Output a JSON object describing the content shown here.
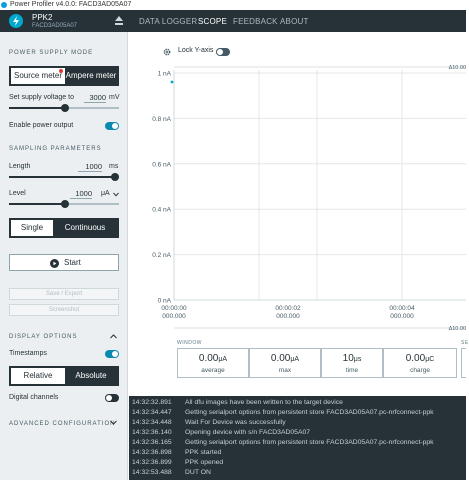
{
  "window": {
    "title": "Power Profiler v4.0.0: FACD3AD05A07"
  },
  "device": {
    "name": "PPK2",
    "serial": "FACD3AD05A07"
  },
  "nav": {
    "tabs": [
      "DATA LOGGER",
      "SCOPE",
      "FEEDBACK",
      "ABOUT"
    ],
    "active": "SCOPE"
  },
  "sidebar": {
    "power_supply_title": "POWER SUPPLY MODE",
    "mode_options": [
      "Source meter",
      "Ampere meter"
    ],
    "mode_selected": "Source meter",
    "voltage_label": "Set supply voltage to",
    "voltage_value": "3000",
    "voltage_unit": "mV",
    "enable_output_label": "Enable power output",
    "enable_output_on": true,
    "sampling_title": "SAMPLING PARAMETERS",
    "length_label": "Length",
    "length_value": "1000",
    "length_unit": "ms",
    "level_label": "Level",
    "level_value": "1000",
    "level_unit": "μA",
    "trigger_options": [
      "Single",
      "Continuous"
    ],
    "trigger_selected": "Single",
    "start_label": "Start",
    "save_export_label": "Save / Export",
    "screenshot_label": "Screenshot",
    "display_title": "DISPLAY OPTIONS",
    "timestamps_label": "Timestamps",
    "timestamps_on": true,
    "view_options": [
      "Relative",
      "Absolute"
    ],
    "view_selected": "Relative",
    "digital_channels_label": "Digital channels",
    "digital_channels_on": false,
    "advanced_title": "ADVANCED CONFIGURATION"
  },
  "chart_toolbar": {
    "lock_y_label": "Lock Y-axis",
    "lock_y_on": false
  },
  "chart_data": {
    "type": "line",
    "y_ticks": [
      "0 nA",
      "0.2 nA",
      "0.4 nA",
      "0.6 nA",
      "0.8 nA",
      "1 nA"
    ],
    "ylim": [
      0,
      1
    ],
    "x_ticks": [
      {
        "time": "00:00:00",
        "sub": "000.000"
      },
      {
        "time": "00:00:02",
        "sub": "000.000"
      },
      {
        "time": "00:00:04",
        "sub": "000.000"
      }
    ],
    "span_top": "Δ10.00",
    "span_bottom": "Δ10.00",
    "series": [
      {
        "x": [
          0
        ],
        "y": [
          1
        ]
      }
    ]
  },
  "stats": {
    "window_label": "WINDOW",
    "second_label": "SE",
    "items": [
      {
        "value": "0.00",
        "unit": "μA",
        "caption": "average"
      },
      {
        "value": "0.00",
        "unit": "μA",
        "caption": "max"
      },
      {
        "value": "10",
        "unit": "μs",
        "caption": "time"
      },
      {
        "value": "0.00",
        "unit": "μC",
        "caption": "charge"
      }
    ]
  },
  "log": [
    {
      "time": "14:32:32.891",
      "message": "All dfu images have been written to the target device"
    },
    {
      "time": "14:32:34.447",
      "message": "Getting serialport options from persistent store FACD3AD05A07.pc-nrfconnect-ppk"
    },
    {
      "time": "14:32:34.448",
      "message": "Wait For Device was successfully"
    },
    {
      "time": "14:32:36.140",
      "message": "Opening device with s/n FACD3AD05A07"
    },
    {
      "time": "14:32:36.165",
      "message": "Getting serialport options from persistent store FACD3AD05A07.pc-nrfconnect-ppk"
    },
    {
      "time": "14:32:36.898",
      "message": "PPK started"
    },
    {
      "time": "14:32:36.899",
      "message": "PPK opened"
    },
    {
      "time": "14:32:53.488",
      "message": "DUT ON"
    }
  ],
  "colors": {
    "accent": "#0a8ab2",
    "nav_bg": "#263238",
    "sidebar_bg": "#eceff1",
    "trace": "#00a9ce"
  }
}
